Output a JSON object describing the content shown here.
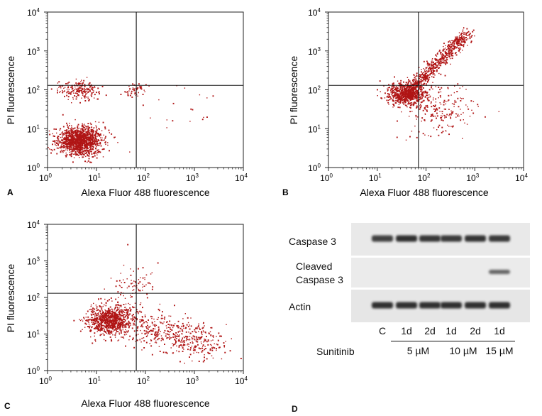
{
  "panels": [
    {
      "letter": "A",
      "xlabel": "Alexa Fluor 488 fluorescence",
      "ylabel": "PI fluorescence"
    },
    {
      "letter": "B",
      "xlabel": "Alexa Fluor 488 fluorescence",
      "ylabel": "PI fluorescence"
    },
    {
      "letter": "C",
      "xlabel": "Alexa Fluor 488 fluorescence",
      "ylabel": "PI fluorescence"
    },
    {
      "letter": "D"
    }
  ],
  "scatter_color": "#b01515",
  "chart_data": [
    {
      "type": "scatter",
      "panel": "A",
      "xlabel": "Alexa Fluor 488 fluorescence",
      "ylabel": "PI fluorescence",
      "xscale": "log",
      "yscale": "log",
      "xlim": [
        1,
        10000
      ],
      "ylim": [
        1,
        10000
      ],
      "x_ticks": [
        "10^0",
        "10^1",
        "10^2",
        "10^3",
        "10^4"
      ],
      "y_ticks": [
        "10^0",
        "10^1",
        "10^2",
        "10^3",
        "10^4"
      ],
      "quadrant_gates": {
        "x": 65,
        "y": 130
      },
      "clusters": [
        {
          "center": [
            4.5,
            5
          ],
          "spread_log": [
            0.22,
            0.18
          ],
          "count": 1300,
          "description": "main population, lower-left"
        },
        {
          "center": [
            4.5,
            100
          ],
          "spread_log": [
            0.2,
            0.12
          ],
          "count": 200,
          "description": "upper-left population"
        },
        {
          "center": [
            60,
            100
          ],
          "spread_log": [
            0.12,
            0.1
          ],
          "count": 50,
          "description": "near gate intersection"
        },
        {
          "center": [
            400,
            30
          ],
          "spread_log": [
            0.5,
            0.4
          ],
          "count": 20,
          "description": "sparse right"
        }
      ]
    },
    {
      "type": "scatter",
      "panel": "B",
      "xlabel": "Alexa Fluor 488 fluorescence",
      "ylabel": "PI fluorescence",
      "xscale": "log",
      "yscale": "log",
      "xlim": [
        1,
        10000
      ],
      "ylim": [
        1,
        10000
      ],
      "x_ticks": [
        "10^0",
        "10^1",
        "10^2",
        "10^3",
        "10^4"
      ],
      "y_ticks": [
        "10^0",
        "10^1",
        "10^2",
        "10^3",
        "10^4"
      ],
      "quadrant_gates": {
        "x": 70,
        "y": 130
      },
      "clusters": [
        {
          "center": [
            40,
            80
          ],
          "spread_log": [
            0.2,
            0.15
          ],
          "count": 700,
          "description": "dense core near center"
        },
        {
          "line_from": [
            30,
            60
          ],
          "line_to": [
            700,
            3000
          ],
          "width_log": 0.08,
          "count": 700,
          "description": "diagonal streak to upper-right"
        },
        {
          "center": [
            200,
            30
          ],
          "spread_log": [
            0.35,
            0.35
          ],
          "count": 200,
          "description": "lower-right spread"
        }
      ]
    },
    {
      "type": "scatter",
      "panel": "C",
      "xlabel": "Alexa Fluor 488 fluorescence",
      "ylabel": "PI fluorescence",
      "xscale": "log",
      "yscale": "log",
      "xlim": [
        1,
        10000
      ],
      "ylim": [
        1,
        10000
      ],
      "x_ticks": [
        "10^0",
        "10^1",
        "10^2",
        "10^3",
        "10^4"
      ],
      "y_ticks": [
        "10^0",
        "10^1",
        "10^2",
        "10^3",
        "10^4"
      ],
      "quadrant_gates": {
        "x": 65,
        "y": 130
      },
      "clusters": [
        {
          "center": [
            18,
            25
          ],
          "spread_log": [
            0.22,
            0.2
          ],
          "count": 900,
          "description": "main population left of gate"
        },
        {
          "line_from": [
            50,
            20
          ],
          "line_to": [
            2500,
            5
          ],
          "width_log": 0.25,
          "count": 500,
          "description": "tail to lower-right"
        },
        {
          "center": [
            60,
            200
          ],
          "spread_log": [
            0.2,
            0.3
          ],
          "count": 80,
          "description": "sparse upper"
        }
      ]
    }
  ],
  "western_blot": {
    "rows": [
      {
        "label_lines": [
          "Caspase 3"
        ],
        "band_intensity": [
          0.85,
          1.0,
          0.95,
          0.92,
          0.96,
          0.9
        ]
      },
      {
        "label_lines": [
          "Cleaved",
          "Caspase 3"
        ],
        "band_intensity": [
          0,
          0,
          0,
          0,
          0,
          0.75
        ]
      },
      {
        "label_lines": [
          "Actin"
        ],
        "band_intensity": [
          1.0,
          1.0,
          1.0,
          1.0,
          1.0,
          1.0
        ]
      }
    ],
    "lanes": [
      "C",
      "1d",
      "2d",
      "1d",
      "2d",
      "1d"
    ],
    "treatment_label": "Sunitinib",
    "groups": [
      {
        "label": "5 µM",
        "lanes": [
          1,
          2
        ]
      },
      {
        "label": "10 µM",
        "lanes": [
          3,
          4
        ]
      },
      {
        "label": "15 µM",
        "lanes": [
          5
        ]
      }
    ]
  }
}
